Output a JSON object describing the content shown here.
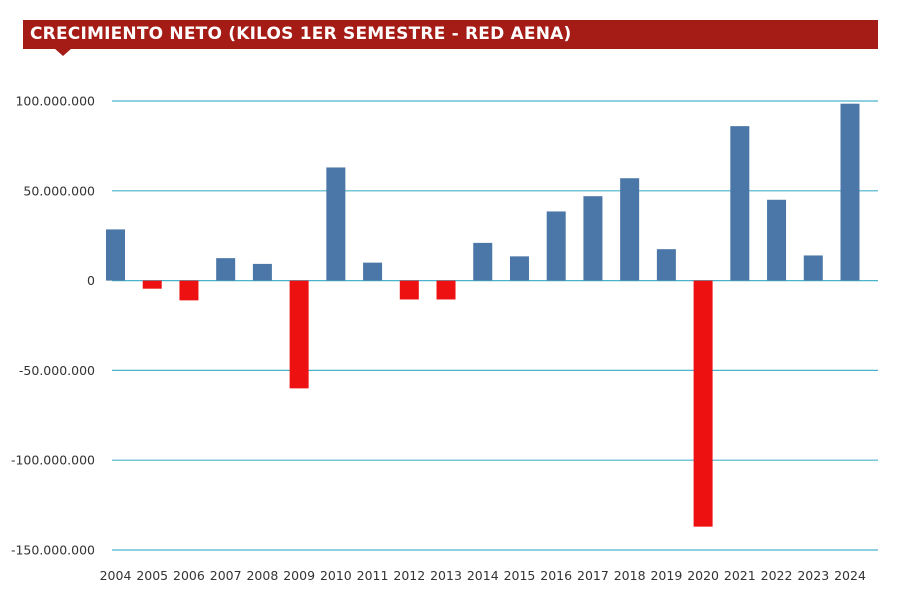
{
  "chart_data": {
    "type": "bar",
    "title": "CRECIMIENTO NETO (KILOS 1ER SEMESTRE - RED AENA)",
    "xlabel": "",
    "ylabel": "",
    "categories": [
      "2004",
      "2005",
      "2006",
      "2007",
      "2008",
      "2009",
      "2010",
      "2011",
      "2012",
      "2013",
      "2014",
      "2015",
      "2016",
      "2017",
      "2018",
      "2019",
      "2020",
      "2021",
      "2022",
      "2023",
      "2024"
    ],
    "values": [
      28500000,
      -4500000,
      -11000000,
      12500000,
      9300000,
      -60000000,
      63000000,
      10000000,
      -10500000,
      -10500000,
      21000000,
      13500000,
      38500000,
      47000000,
      57000000,
      17500000,
      -137000000,
      86000000,
      45000000,
      14000000,
      98500000
    ],
    "ylim": [
      -150000000,
      100000000
    ],
    "yticks": [
      100000000,
      50000000,
      0,
      -50000000,
      -100000000,
      -150000000
    ],
    "ytick_labels": [
      "100.000.000",
      "50.000.000",
      "0",
      "-50.000.000",
      "-100.000.000",
      "-150.000.000"
    ],
    "grid": true,
    "legend": "none",
    "colors": {
      "positive": "#4a77a7",
      "negative": "#ee1111",
      "grid": "#4ab3cc",
      "title_banner": "#a51c16"
    }
  }
}
